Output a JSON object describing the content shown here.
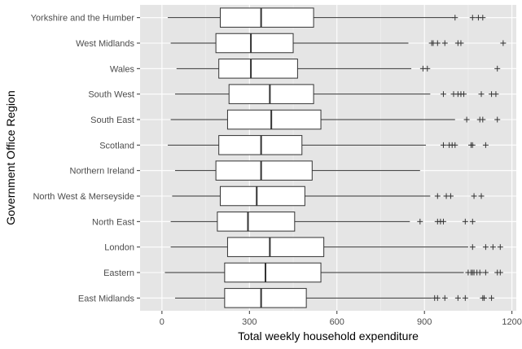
{
  "chart_data": {
    "type": "boxplot",
    "orientation": "horizontal",
    "xlabel": "Total weekly household expenditure",
    "ylabel": "Government Office Region",
    "xlim": [
      -75,
      1215
    ],
    "xticks": [
      0,
      300,
      600,
      900,
      1200
    ],
    "grid": true,
    "background": "#e5e5e5",
    "categories": [
      "Yorkshire and the Humber",
      "West Midlands",
      "Wales",
      "South West",
      "South East",
      "Scotland",
      "Northern Ireland",
      "North West & Merseyside",
      "North East",
      "London",
      "Eastern",
      "East Midlands"
    ],
    "boxes": [
      {
        "category": "Yorkshire and the Humber",
        "whisker_low": 20,
        "q1": 200,
        "median": 340,
        "q3": 520,
        "whisker_high": 1000,
        "outliers": [
          1005,
          1065,
          1085,
          1100
        ]
      },
      {
        "category": "West Midlands",
        "whisker_low": 30,
        "q1": 185,
        "median": 305,
        "q3": 450,
        "whisker_high": 845,
        "outliers": [
          925,
          930,
          945,
          970,
          1015,
          1025,
          1170
        ]
      },
      {
        "category": "Wales",
        "whisker_low": 50,
        "q1": 195,
        "median": 305,
        "q3": 465,
        "whisker_high": 855,
        "outliers": [
          895,
          910,
          1150
        ]
      },
      {
        "category": "South West",
        "whisker_low": 45,
        "q1": 230,
        "median": 370,
        "q3": 520,
        "whisker_high": 920,
        "outliers": [
          965,
          1000,
          1015,
          1025,
          1035,
          1095,
          1130,
          1145
        ]
      },
      {
        "category": "South East",
        "whisker_low": 30,
        "q1": 225,
        "median": 375,
        "q3": 545,
        "whisker_high": 1005,
        "outliers": [
          1045,
          1090,
          1100,
          1150
        ]
      },
      {
        "category": "Scotland",
        "whisker_low": 20,
        "q1": 195,
        "median": 340,
        "q3": 480,
        "whisker_high": 905,
        "outliers": [
          965,
          985,
          995,
          1005,
          1060,
          1065,
          1110
        ]
      },
      {
        "category": "Northern Ireland",
        "whisker_low": 45,
        "q1": 185,
        "median": 340,
        "q3": 515,
        "whisker_high": 885,
        "outliers": []
      },
      {
        "category": "North West & Merseyside",
        "whisker_low": 35,
        "q1": 200,
        "median": 325,
        "q3": 490,
        "whisker_high": 920,
        "outliers": [
          945,
          975,
          990,
          1070,
          1095
        ]
      },
      {
        "category": "North East",
        "whisker_low": 30,
        "q1": 190,
        "median": 295,
        "q3": 455,
        "whisker_high": 850,
        "outliers": [
          885,
          945,
          955,
          965,
          1040,
          1065
        ]
      },
      {
        "category": "London",
        "whisker_low": 30,
        "q1": 225,
        "median": 370,
        "q3": 555,
        "whisker_high": 1050,
        "outliers": [
          1065,
          1110,
          1135,
          1160
        ]
      },
      {
        "category": "Eastern",
        "whisker_low": 10,
        "q1": 215,
        "median": 355,
        "q3": 545,
        "whisker_high": 1035,
        "outliers": [
          1050,
          1060,
          1065,
          1070,
          1080,
          1090,
          1110,
          1150,
          1160
        ]
      },
      {
        "category": "East Midlands",
        "whisker_low": 45,
        "q1": 215,
        "median": 340,
        "q3": 495,
        "whisker_high": 925,
        "outliers": [
          935,
          945,
          970,
          1015,
          1040,
          1100,
          1105,
          1130
        ]
      }
    ]
  }
}
